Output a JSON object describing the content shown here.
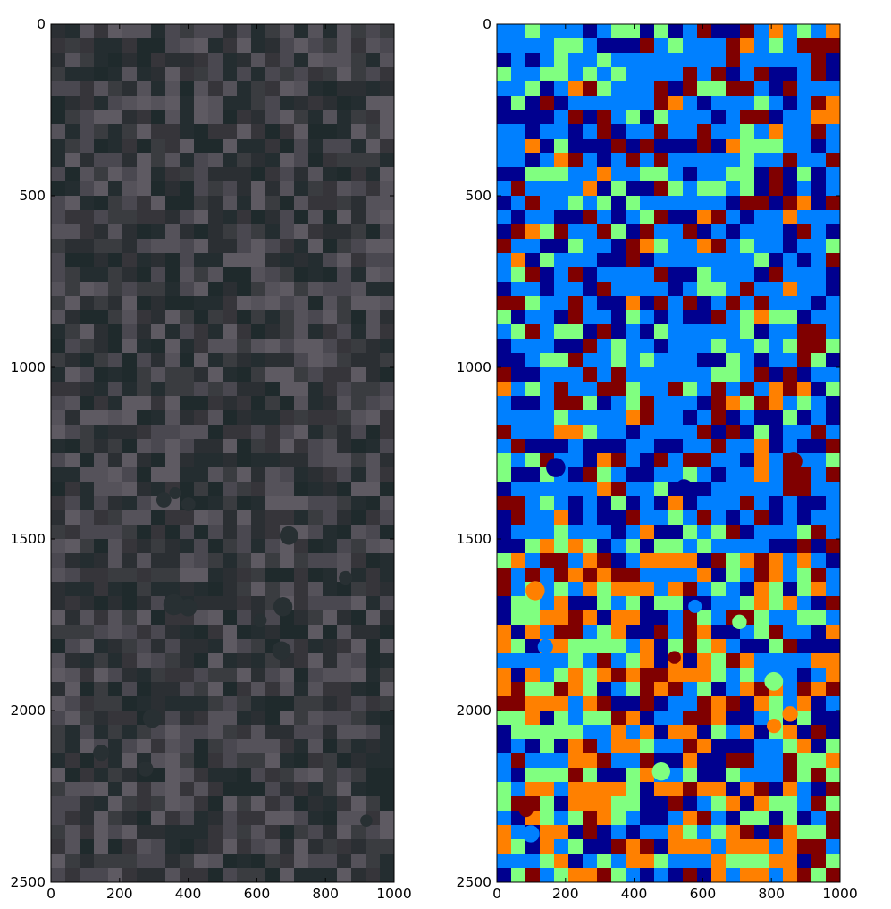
{
  "chart_data": [
    {
      "type": "heatmap",
      "title": "",
      "xlabel": "",
      "ylabel": "",
      "xlim": [
        0,
        1000
      ],
      "ylim": [
        2500,
        0
      ],
      "x_ticks": [
        0,
        200,
        400,
        600,
        800,
        1000
      ],
      "y_ticks": [
        0,
        500,
        1000,
        1500,
        2000,
        2500
      ],
      "x_tick_labels": [
        "0",
        "200",
        "400",
        "600",
        "800",
        "1000"
      ],
      "y_tick_labels": [
        "0",
        "500",
        "1000",
        "1500",
        "2000",
        "2500"
      ],
      "grid": false,
      "image_kind": "satellite true-color image of agricultural fields",
      "palette": [
        "#2b2f33",
        "#3a3c40",
        "#4a4850",
        "#55525a",
        "#1f2a2c",
        "#242d30",
        "#36353a",
        "#5e5a62"
      ]
    },
    {
      "type": "heatmap",
      "title": "",
      "xlabel": "",
      "ylabel": "",
      "xlim": [
        0,
        1000
      ],
      "ylim": [
        2500,
        0
      ],
      "x_ticks": [
        0,
        200,
        400,
        600,
        800,
        1000
      ],
      "y_ticks": [
        0,
        500,
        1000,
        1500,
        2000,
        2500
      ],
      "x_tick_labels": [
        "0",
        "200",
        "400",
        "600",
        "800",
        "1000"
      ],
      "y_tick_labels": [
        "0",
        "500",
        "1000",
        "1500",
        "2000",
        "2500"
      ],
      "grid": false,
      "image_kind": "classification map (jet colormap, 5 classes)",
      "classes": 5,
      "palette": [
        "#00008f",
        "#0080ff",
        "#80ff80",
        "#ff8000",
        "#800000"
      ],
      "class_frequency_by_row": [
        {
          "y_range": [
            0,
            1500
          ],
          "weights": [
            0.22,
            0.46,
            0.12,
            0.05,
            0.15
          ]
        },
        {
          "y_range": [
            1500,
            2500
          ],
          "weights": [
            0.18,
            0.22,
            0.2,
            0.25,
            0.15
          ]
        }
      ]
    }
  ]
}
